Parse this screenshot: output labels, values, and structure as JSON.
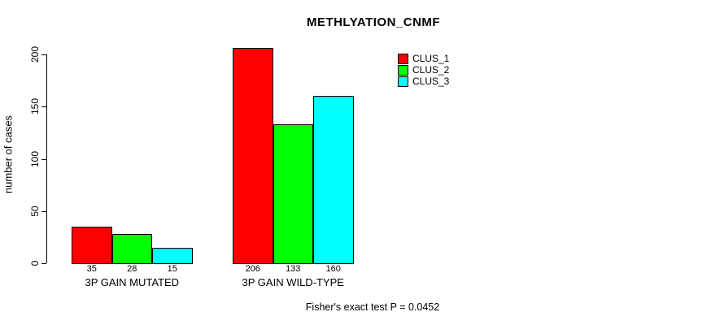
{
  "title": "METHLYATION_CNMF",
  "chart_data": {
    "type": "bar",
    "grouped": true,
    "title": "METHLYATION_CNMF",
    "categories": [
      "3P GAIN MUTATED",
      "3P GAIN WILD-TYPE"
    ],
    "series": [
      {
        "name": "CLUS_1",
        "color": "#ff0000",
        "values": [
          35,
          206
        ]
      },
      {
        "name": "CLUS_2",
        "color": "#00ff00",
        "values": [
          28,
          133
        ]
      },
      {
        "name": "CLUS_3",
        "color": "#00ffff",
        "values": [
          15,
          160
        ]
      }
    ],
    "xlabel": "",
    "ylabel": "number of cases",
    "ylim": [
      0,
      200
    ],
    "yticks": [
      0,
      50,
      100,
      150,
      200
    ],
    "bar_value_labels": [
      [
        "35",
        "28",
        "15"
      ],
      [
        "206",
        "133",
        "160"
      ]
    ],
    "grid": false,
    "legend_position": "top-right",
    "legend_entries": [
      "CLUS_1",
      "CLUS_2",
      "CLUS_3"
    ],
    "annotation": "Fisher's exact test P = 0.0452"
  }
}
